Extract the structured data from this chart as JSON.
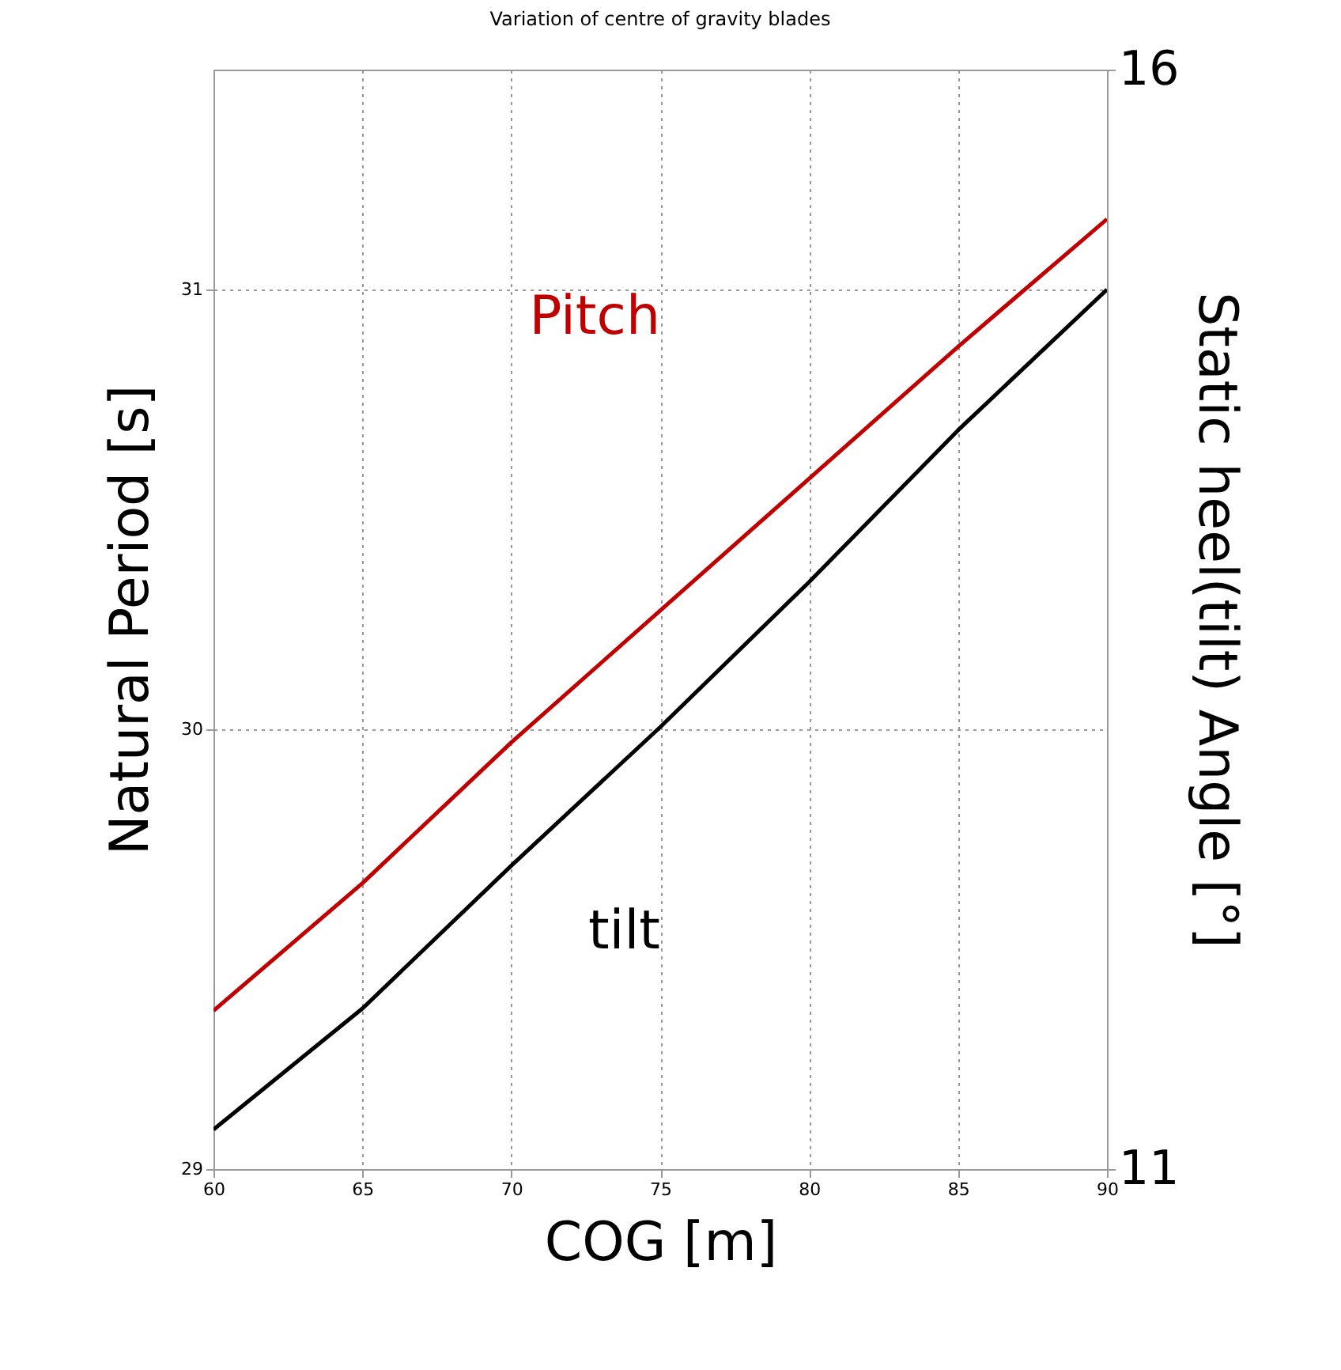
{
  "chart_data": {
    "type": "line",
    "title": "Variation of centre of gravity blades",
    "xlabel": "COG [m]",
    "ylabel": "Natural Period [s]",
    "y2label": "Static heel(tilt)  Angle [°]",
    "x": [
      60,
      65,
      70,
      75,
      80,
      85,
      90
    ],
    "xlim": [
      60,
      90
    ],
    "xticks": [
      60,
      65,
      70,
      75,
      80,
      85,
      90
    ],
    "ylim": [
      29,
      31.5
    ],
    "yticks": [
      29,
      30,
      31
    ],
    "y2lim": [
      11,
      16
    ],
    "y2ticks": [
      11,
      16
    ],
    "grid": true,
    "series": [
      {
        "name": "Pitch",
        "color": "#c00000",
        "values": [
          29.36,
          29.65,
          29.97,
          30.27,
          30.57,
          30.87,
          31.16
        ]
      },
      {
        "name": "tilt",
        "color": "#000000",
        "axis": "y2",
        "values": [
          11.18,
          11.73,
          12.38,
          13.01,
          13.67,
          14.36,
          15.0
        ]
      }
    ]
  }
}
